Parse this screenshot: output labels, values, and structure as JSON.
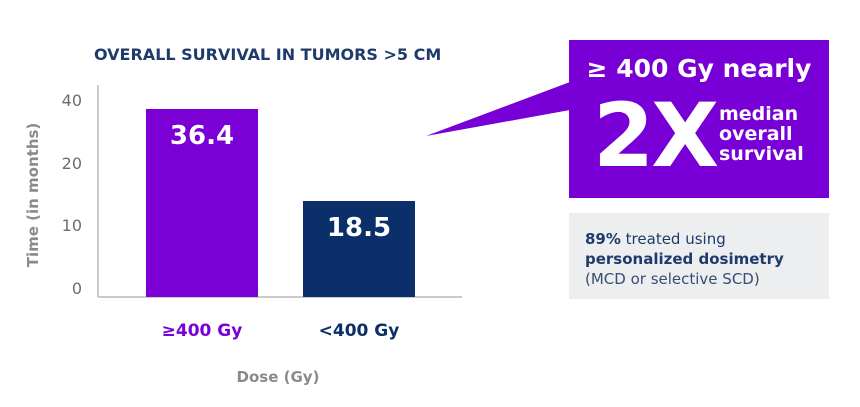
{
  "chart_data": {
    "type": "bar",
    "title": "OVERALL SURVIVAL IN TUMORS >5 CM",
    "ylabel": "Time (in months)",
    "xlabel": "Dose (Gy)",
    "categories": [
      "≥400 Gy",
      "<400 Gy"
    ],
    "values": [
      36.4,
      18.5
    ],
    "value_labels": [
      "36.4",
      "18.5"
    ],
    "yticks": [
      "0",
      "10",
      "20",
      "40"
    ],
    "colors": [
      "#7a00d6",
      "#0b2f68"
    ],
    "category_label_colors": [
      "#7a00d6",
      "#0b2f68"
    ],
    "grid": false,
    "legend": "none"
  },
  "callout": {
    "headline": "≥ 400 Gy nearly",
    "big": "2X",
    "sub": [
      "median",
      "overall",
      "survival"
    ],
    "bg": "#7800d6"
  },
  "note": {
    "line1_bold": "89%",
    "line1_rest": " treated using",
    "line2_bold": "personalized dosimetry",
    "line3": "(MCD or selective SCD)"
  }
}
